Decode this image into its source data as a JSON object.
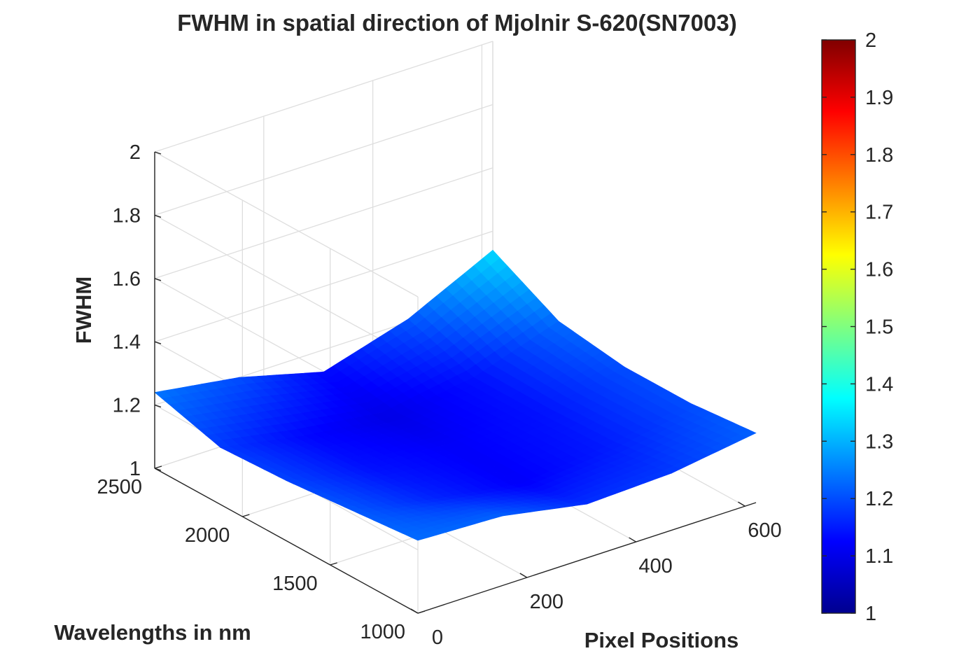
{
  "chart_data": {
    "type": "surface",
    "title": "FWHM in spatial direction of Mjolnir S-620(SN7003)",
    "x_axis": {
      "label": "Pixel Positions",
      "range": [
        0,
        620
      ],
      "ticks": [
        0,
        200,
        400,
        600
      ]
    },
    "y_axis": {
      "label": "Wavelengths in nm",
      "range": [
        1000,
        2500
      ],
      "ticks": [
        1000,
        1500,
        2000,
        2500
      ]
    },
    "z_axis": {
      "label": "FWHM",
      "range": [
        1,
        2
      ],
      "ticks": [
        1,
        1.2,
        1.4,
        1.6,
        1.8,
        2
      ]
    },
    "colorbar": {
      "colormap": "jet",
      "range": [
        1,
        2
      ],
      "ticks": [
        1,
        1.1,
        1.2,
        1.3,
        1.4,
        1.5,
        1.6,
        1.7,
        1.8,
        1.9,
        2
      ]
    },
    "grid": true,
    "surface": {
      "x": [
        0,
        155,
        310,
        465,
        620
      ],
      "y": [
        1000,
        1375,
        1750,
        2125,
        2500
      ],
      "z": [
        [
          1.23,
          1.22,
          1.17,
          1.18,
          1.22
        ],
        [
          1.21,
          1.16,
          1.12,
          1.15,
          1.2
        ],
        [
          1.19,
          1.14,
          1.12,
          1.14,
          1.2
        ],
        [
          1.18,
          1.13,
          1.1,
          1.14,
          1.23
        ],
        [
          1.24,
          1.2,
          1.13,
          1.21,
          1.34
        ]
      ]
    }
  }
}
